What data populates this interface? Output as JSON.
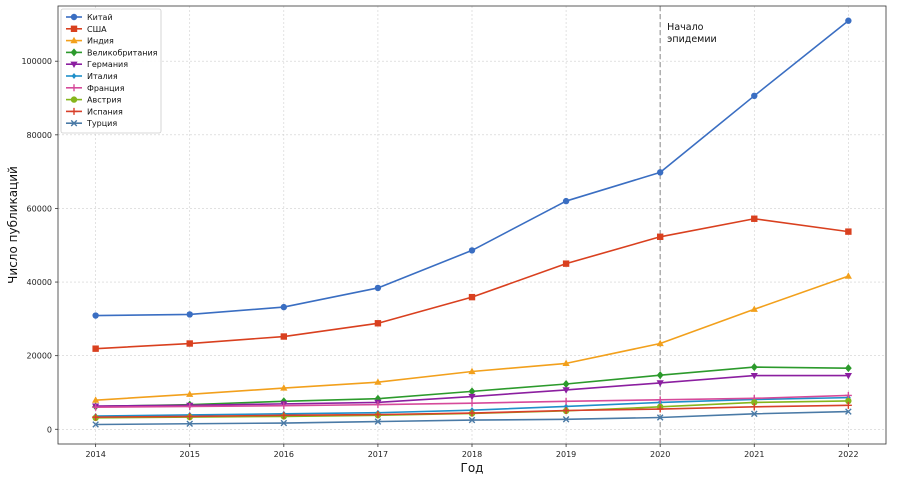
{
  "chart_data": {
    "type": "line",
    "title": "",
    "xlabel": "Год",
    "ylabel": "Число публикаций",
    "x": [
      2014,
      2015,
      2016,
      2017,
      2018,
      2019,
      2020,
      2021,
      2022
    ],
    "xlim": [
      2013.6,
      2022.4
    ],
    "ylim": [
      -4000,
      115000
    ],
    "yticks": [
      0,
      20000,
      40000,
      60000,
      80000,
      100000
    ],
    "grid": true,
    "legend_position": "top-left",
    "vline": {
      "x": 2020,
      "label_line1": "Начало",
      "label_line2": "эпидемии"
    },
    "series": [
      {
        "name": "Китай",
        "color": "#3a6ec2",
        "marker": "circle",
        "values": [
          30900,
          31200,
          33200,
          38400,
          48600,
          62000,
          69800,
          90600,
          111000
        ]
      },
      {
        "name": "США",
        "color": "#d9401f",
        "marker": "square",
        "values": [
          21900,
          23300,
          25200,
          28800,
          35900,
          45000,
          52300,
          57200,
          53700
        ]
      },
      {
        "name": "Индия",
        "color": "#f2a01c",
        "marker": "triangle-up",
        "values": [
          7900,
          9500,
          11200,
          12800,
          15700,
          17900,
          23300,
          32600,
          41600
        ]
      },
      {
        "name": "Великобритания",
        "color": "#2c9a2c",
        "marker": "diamond",
        "values": [
          6200,
          6700,
          7600,
          8300,
          10300,
          12300,
          14700,
          16900,
          16600
        ]
      },
      {
        "name": "Германия",
        "color": "#8b1fa0",
        "marker": "triangle-down",
        "values": [
          6300,
          6500,
          6900,
          7300,
          8900,
          10700,
          12600,
          14600,
          14600
        ]
      },
      {
        "name": "Италия",
        "color": "#1f8fc9",
        "marker": "small-diamond",
        "values": [
          3600,
          3900,
          4200,
          4500,
          5200,
          6200,
          7300,
          8100,
          8600
        ]
      },
      {
        "name": "Франция",
        "color": "#d64a9a",
        "marker": "plus",
        "values": [
          6000,
          6200,
          6400,
          6700,
          7100,
          7600,
          8000,
          8400,
          9200
        ]
      },
      {
        "name": "Австрия",
        "color": "#86b51c",
        "marker": "circle",
        "values": [
          3100,
          3300,
          3500,
          3800,
          4300,
          5000,
          6100,
          7300,
          7700
        ]
      },
      {
        "name": "Испания",
        "color": "#d8402a",
        "marker": "plus",
        "values": [
          3300,
          3500,
          3800,
          4000,
          4400,
          5100,
          5500,
          6100,
          6500
        ]
      },
      {
        "name": "Турция",
        "color": "#4a7aa6",
        "marker": "x",
        "values": [
          1300,
          1500,
          1700,
          2100,
          2500,
          2700,
          3200,
          4200,
          4800
        ]
      }
    ]
  }
}
